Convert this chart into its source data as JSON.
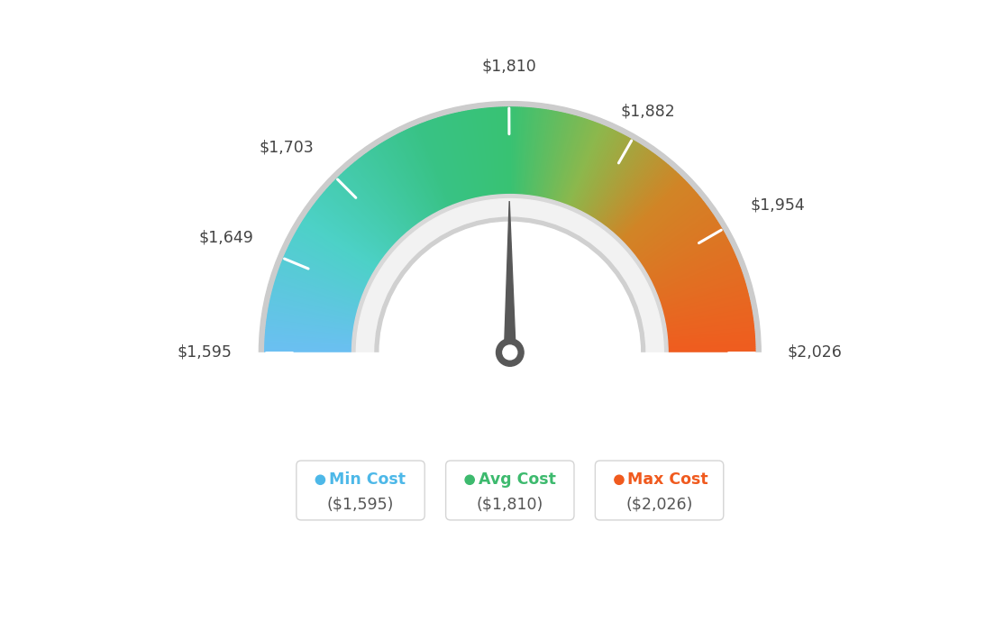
{
  "min_val": 1595,
  "max_val": 2026,
  "avg_val": 1810,
  "tick_labels": [
    "$1,595",
    "$1,649",
    "$1,703",
    "$1,810",
    "$1,882",
    "$1,954",
    "$2,026"
  ],
  "tick_values": [
    1595,
    1649,
    1703,
    1810,
    1882,
    1954,
    2026
  ],
  "legend": [
    {
      "label": "Min Cost",
      "value": "($1,595)",
      "color": "#4db8e8"
    },
    {
      "label": "Avg Cost",
      "value": "($1,810)",
      "color": "#3dba6e"
    },
    {
      "label": "Max Cost",
      "value": "($2,026)",
      "color": "#f05a1e"
    }
  ],
  "bg_color": "#ffffff",
  "needle_color": "#585858",
  "color_stops": [
    [
      0.0,
      [
        0.42,
        0.75,
        0.95
      ]
    ],
    [
      0.18,
      [
        0.3,
        0.82,
        0.78
      ]
    ],
    [
      0.38,
      [
        0.22,
        0.76,
        0.52
      ]
    ],
    [
      0.5,
      [
        0.22,
        0.76,
        0.45
      ]
    ],
    [
      0.62,
      [
        0.55,
        0.72,
        0.3
      ]
    ],
    [
      0.75,
      [
        0.82,
        0.52,
        0.15
      ]
    ],
    [
      1.0,
      [
        0.94,
        0.36,
        0.12
      ]
    ]
  ]
}
